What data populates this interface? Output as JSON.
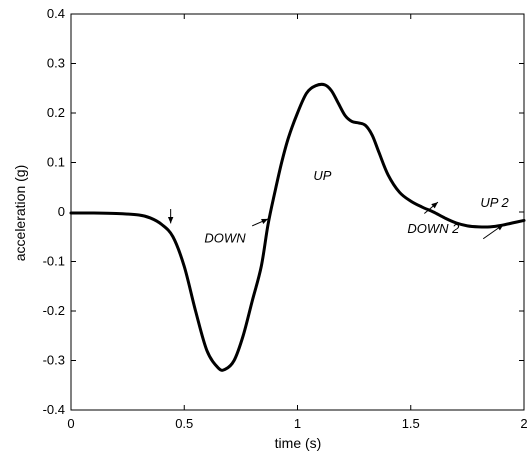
{
  "chart_data": {
    "type": "line",
    "title": "",
    "xlabel": "time (s)",
    "ylabel": "acceleration (g)",
    "xlim": [
      0,
      2
    ],
    "ylim": [
      -0.4,
      0.4
    ],
    "xticks": [
      0,
      0.5,
      1,
      1.5,
      2
    ],
    "xtick_labels": [
      "0",
      "0.5",
      "1",
      "1.5",
      "2"
    ],
    "yticks": [
      -0.4,
      -0.3,
      -0.2,
      -0.1,
      0,
      0.1,
      0.2,
      0.3,
      0.4
    ],
    "ytick_labels": [
      "-0.4",
      "-0.3",
      "-0.2",
      "-0.1",
      "0",
      "0.1",
      "0.2",
      "0.3",
      "0.4"
    ],
    "grid": false,
    "series": [
      {
        "color": "#000000",
        "x": [
          0,
          0.1,
          0.2,
          0.3,
          0.35,
          0.4,
          0.45,
          0.5,
          0.55,
          0.6,
          0.65,
          0.68,
          0.72,
          0.76,
          0.8,
          0.84,
          0.87,
          0.9,
          0.93,
          0.96,
          1.0,
          1.04,
          1.08,
          1.12,
          1.15,
          1.18,
          1.21,
          1.24,
          1.27,
          1.3,
          1.33,
          1.36,
          1.4,
          1.45,
          1.5,
          1.55,
          1.6,
          1.65,
          1.7,
          1.75,
          1.8,
          1.85,
          1.9,
          1.95,
          2.0
        ],
        "y": [
          -0.002,
          -0.002,
          -0.003,
          -0.006,
          -0.012,
          -0.025,
          -0.05,
          -0.11,
          -0.2,
          -0.28,
          -0.315,
          -0.318,
          -0.3,
          -0.25,
          -0.18,
          -0.11,
          -0.025,
          0.04,
          0.1,
          0.15,
          0.2,
          0.24,
          0.255,
          0.257,
          0.245,
          0.22,
          0.195,
          0.183,
          0.18,
          0.175,
          0.155,
          0.12,
          0.075,
          0.04,
          0.022,
          0.01,
          0.0,
          -0.012,
          -0.022,
          -0.028,
          -0.03,
          -0.03,
          -0.027,
          -0.022,
          -0.017
        ]
      }
    ],
    "annotations": [
      {
        "text": "DOWN",
        "x": 0.68,
        "y": -0.062
      },
      {
        "text": "UP",
        "x": 1.11,
        "y": 0.065
      },
      {
        "text": "DOWN 2",
        "x": 1.6,
        "y": -0.042
      },
      {
        "text": "UP 2",
        "x": 1.87,
        "y": 0.01
      }
    ],
    "arrows": [
      {
        "from": [
          0.44,
          0.006
        ],
        "to": [
          0.44,
          -0.023
        ]
      },
      {
        "from": [
          0.8,
          -0.028
        ],
        "to": [
          0.87,
          -0.014
        ]
      },
      {
        "from": [
          1.56,
          -0.003
        ],
        "to": [
          1.62,
          0.02
        ]
      },
      {
        "from": [
          1.82,
          -0.054
        ],
        "to": [
          1.91,
          -0.025
        ]
      }
    ]
  }
}
